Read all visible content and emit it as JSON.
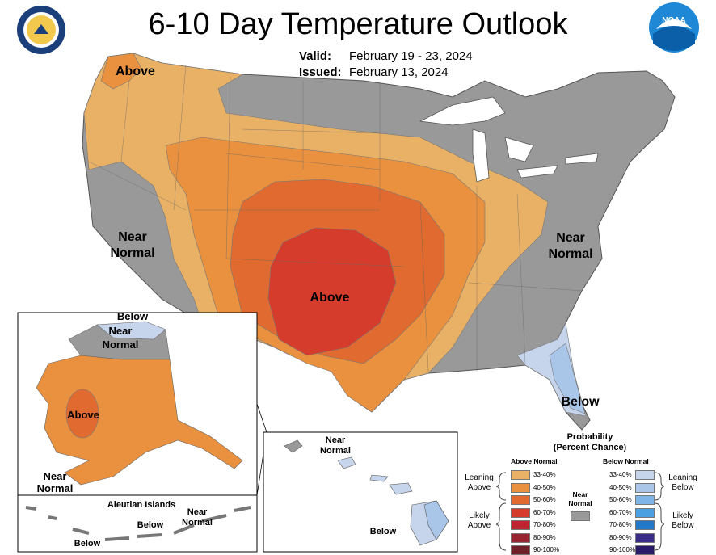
{
  "title": "6-10 Day Temperature Outlook",
  "valid_label": "Valid:",
  "valid_value": "February 19 - 23, 2024",
  "issued_label": "Issued:",
  "issued_value": "February 13, 2024",
  "logos": {
    "left": "department-of-commerce-seal",
    "right": "noaa-logo",
    "noaa_text": "NOAA"
  },
  "regions": {
    "nw_above": "Above",
    "west_near": "Near",
    "west_normal": "Normal",
    "central_above": "Above",
    "east_near": "Near",
    "east_normal": "Normal",
    "fl_below": "Below"
  },
  "alaska": {
    "below": "Below",
    "near": "Near",
    "normal": "Normal",
    "above": "Above",
    "sw_near": "Near",
    "sw_normal": "Normal"
  },
  "aleutian": {
    "title": "Aleutian Islands",
    "below1": "Below",
    "below2": "Below",
    "near": "Near",
    "normal": "Normal"
  },
  "hawaii": {
    "near": "Near",
    "normal": "Normal",
    "below": "Below"
  },
  "legend": {
    "title_line1": "Probability",
    "title_line2": "(Percent Chance)",
    "above_header": "Above Normal",
    "below_header": "Below Normal",
    "near_label_line1": "Near",
    "near_label_line2": "Normal",
    "leaning_above_1": "Leaning",
    "leaning_above_2": "Above",
    "likely_above_1": "Likely",
    "likely_above_2": "Above",
    "leaning_below_1": "Leaning",
    "leaning_below_2": "Below",
    "likely_below_1": "Likely",
    "likely_below_2": "Below",
    "bins": [
      "33-40%",
      "40-50%",
      "50-60%",
      "60-70%",
      "70-80%",
      "80-90%",
      "90-100%"
    ],
    "above_colors": [
      "#E8B165",
      "#E9913F",
      "#E06A2F",
      "#D63C2C",
      "#BE2430",
      "#9A2430",
      "#6E1F28"
    ],
    "below_colors": [
      "#C7D5EC",
      "#A9C6E8",
      "#7EB4E8",
      "#4AA0E0",
      "#2178C8",
      "#3A2C8A",
      "#2A1A6A"
    ],
    "near_color": "#999999"
  }
}
